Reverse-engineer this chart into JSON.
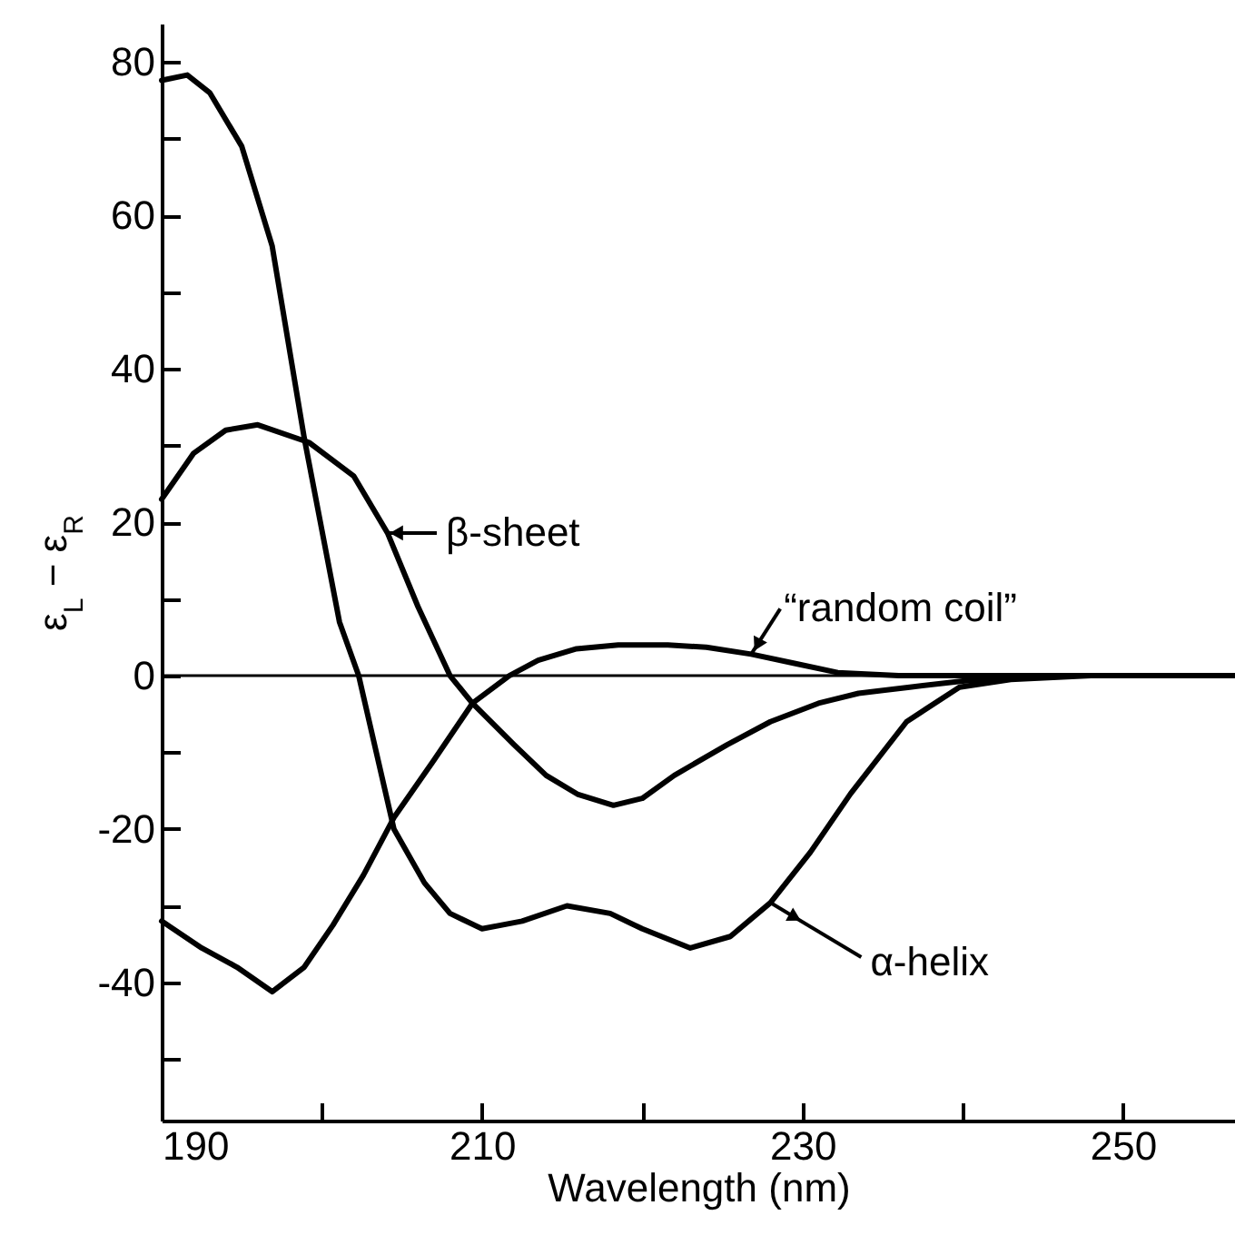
{
  "chart_data": {
    "type": "line",
    "xlabel": "Wavelength (nm)",
    "ylabel": "ε$_{L}$ − ε$_{R}$",
    "xlim": [
      190,
      257
    ],
    "ylim": [
      -58,
      85
    ],
    "xticks": [
      190,
      {
        "value": 200,
        "label": null
      },
      210,
      {
        "value": 220,
        "label": null
      },
      230,
      {
        "value": 240,
        "label": null
      },
      250
    ],
    "yticks": [
      {
        "value": -50,
        "label": null
      },
      -40,
      {
        "value": -30,
        "label": null
      },
      -20,
      {
        "value": -10,
        "label": null
      },
      0,
      {
        "value": 10,
        "label": null
      },
      20,
      {
        "value": 30,
        "label": null
      },
      40,
      {
        "value": 50,
        "label": null
      },
      60,
      {
        "value": 70,
        "label": null
      },
      80
    ],
    "grid": false,
    "line_style": "solid",
    "series": [
      {
        "color": "#000000",
        "x": [
          190,
          191.6,
          193,
          195,
          196.9,
          198.9,
          201.1,
          202.3,
          204.5,
          206.4,
          208,
          210,
          212.5,
          215.3,
          218,
          220,
          223,
          225.5,
          228,
          230.5,
          233,
          236.5,
          239.8,
          243,
          248,
          257
        ],
        "values": [
          77.6,
          78.3,
          76,
          69,
          56,
          31,
          7,
          0,
          -20,
          -27,
          -31,
          -33,
          -32,
          -30,
          -31,
          -33,
          -35.5,
          -34,
          -29.6,
          -23,
          -15.4,
          -6,
          -1.5,
          -0.5,
          0,
          0
        ]
      },
      {
        "color": "#000000",
        "x": [
          190,
          192,
          194,
          196,
          199.2,
          202,
          204.1,
          206,
          208,
          209.4,
          212,
          214,
          216,
          218.2,
          220,
          222,
          225.3,
          228,
          231,
          233.5,
          236.7,
          240,
          245,
          257
        ],
        "values": [
          23,
          29,
          32,
          32.7,
          30.4,
          26,
          18.6,
          9,
          0,
          -3.6,
          -9,
          -13,
          -15.5,
          -16.9,
          -16,
          -13,
          -9,
          -6,
          -3.6,
          -2.3,
          -1.5,
          -0.7,
          0,
          0
        ]
      },
      {
        "color": "#000000",
        "x": [
          190,
          192.5,
          194.7,
          196.9,
          198.9,
          200.7,
          202.6,
          204.5,
          207,
          209.4,
          211.7,
          213.5,
          215.9,
          218.5,
          221.6,
          224,
          226.8,
          229.5,
          232.2,
          236,
          240,
          257
        ],
        "values": [
          -32,
          -35.5,
          -38,
          -41.2,
          -38,
          -32.5,
          -26,
          -18.5,
          -11,
          -3.6,
          0,
          2,
          3.5,
          4,
          4,
          3.7,
          2.8,
          1.6,
          0.4,
          0,
          0,
          0
        ]
      }
    ],
    "ref_lines": [
      {
        "axis": "y",
        "value": 0,
        "color": "#000000"
      }
    ],
    "annotations": [
      {
        "text": "β-sheet",
        "x": 204,
        "y": 18.6
      },
      {
        "text": "“random coil”",
        "x": 226.8,
        "y": 2.8
      },
      {
        "text": "α-helix",
        "x": 228,
        "y": -29.6
      }
    ]
  }
}
